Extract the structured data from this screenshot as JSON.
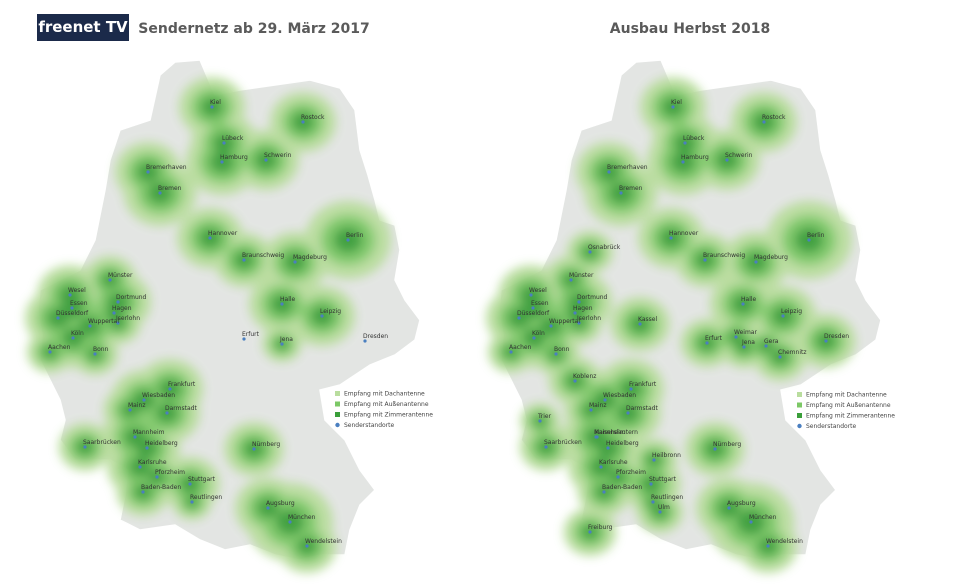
{
  "header": {
    "logo": "freenet TV"
  },
  "maps": [
    {
      "title": "Sendernetz ab 29. März 2017",
      "cities": [
        "Kiel",
        "Rostock",
        "Lübeck",
        "Hamburg",
        "Schwerin",
        "Bremerhaven",
        "Bremen",
        "Berlin",
        "Hannover",
        "Braunschweig",
        "Magdeburg",
        "Münster",
        "Wesel",
        "Essen",
        "Dortmund",
        "Hagen",
        "Düsseldorf",
        "Iserlohn",
        "Wuppertal",
        "Köln",
        "Aachen",
        "Bonn",
        "Halle",
        "Leipzig",
        "Erfurt",
        "Jena",
        "Dresden",
        "Frankfurt",
        "Wiesbaden",
        "Mainz",
        "Darmstadt",
        "Saarbrücken",
        "Mannheim",
        "Heidelberg",
        "Karlsruhe",
        "Pforzheim",
        "Stuttgart",
        "Baden-Baden",
        "Reutlingen",
        "Nürnberg",
        "Augsburg",
        "München",
        "Wendelstein"
      ],
      "legend": [
        "Empfang mit Dachantenne",
        "Empfang mit Außenantenne",
        "Empfang mit Zimmerantenne",
        "Senderstandorte"
      ]
    },
    {
      "title": "Ausbau Herbst 2018",
      "cities": [
        "Kiel",
        "Rostock",
        "Lübeck",
        "Hamburg",
        "Schwerin",
        "Bremerhaven",
        "Bremen",
        "Berlin",
        "Hannover",
        "Braunschweig",
        "Magdeburg",
        "Osnabrück",
        "Münster",
        "Wesel",
        "Essen",
        "Dortmund",
        "Hagen",
        "Düsseldorf",
        "Iserlohn",
        "Wuppertal",
        "Köln",
        "Aachen",
        "Bonn",
        "Kassel",
        "Halle",
        "Leipzig",
        "Erfurt",
        "Weimar",
        "Jena",
        "Gera",
        "Chemnitz",
        "Dresden",
        "Koblenz",
        "Frankfurt",
        "Wiesbaden",
        "Mainz",
        "Darmstadt",
        "Trier",
        "Kaiserslautern",
        "Saarbrücken",
        "Mannheim",
        "Heidelberg",
        "Heilbronn",
        "Karlsruhe",
        "Pforzheim",
        "Stuttgart",
        "Baden-Baden",
        "Reutlingen",
        "Ulm",
        "Freiburg",
        "Nürnberg",
        "Augsburg",
        "München",
        "Wendelstein"
      ],
      "legend": [
        "Empfang mit Dachantenne",
        "Empfang mit Außenantenne",
        "Empfang mit Zimmerantenne",
        "Senderstandorte"
      ]
    }
  ]
}
